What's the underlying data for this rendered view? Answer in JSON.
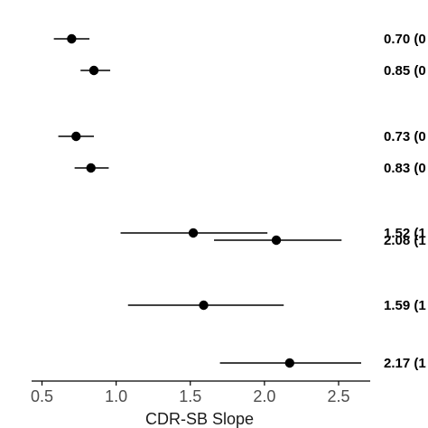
{
  "chart_data": {
    "type": "forest",
    "xlabel": "CDR-SB Slope",
    "xlim": [
      0.4,
      2.65
    ],
    "xticks": [
      0.5,
      1.0,
      1.5,
      2.0,
      2.5
    ],
    "xtick_labels": [
      "0.5",
      "1.0",
      "1.5",
      "2.0",
      "2.5"
    ],
    "rows": [
      {
        "estimate": 0.7,
        "lower": 0.58,
        "upper": 0.82,
        "label": "0.70 (0"
      },
      {
        "estimate": 0.85,
        "lower": 0.76,
        "upper": 0.96,
        "label": "0.85 (0"
      },
      {
        "estimate": 0.73,
        "lower": 0.61,
        "upper": 0.85,
        "label": "0.73 (0"
      },
      {
        "estimate": 0.83,
        "lower": 0.72,
        "upper": 0.95,
        "label": "0.83 (0"
      },
      {
        "estimate": 1.52,
        "lower": 1.03,
        "upper": 2.02,
        "label": "1.52 (1"
      },
      {
        "estimate": 2.08,
        "lower": 1.66,
        "upper": 2.52,
        "label": "2.08 (1"
      },
      {
        "estimate": 1.59,
        "lower": 1.08,
        "upper": 2.13,
        "label": "1.59 (1"
      },
      {
        "estimate": 2.17,
        "lower": 1.7,
        "upper": 2.66,
        "label": "2.17 (1"
      }
    ]
  }
}
